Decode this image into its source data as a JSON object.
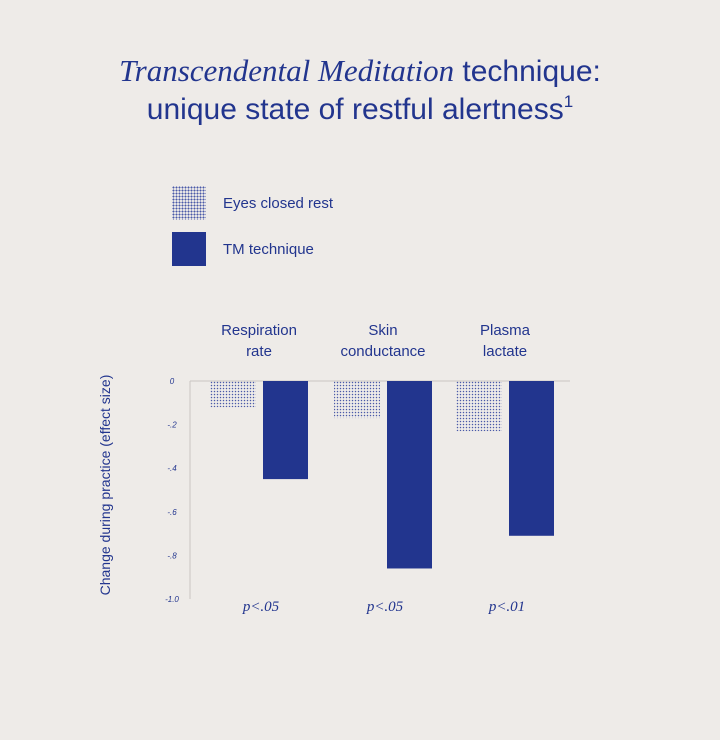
{
  "title": {
    "italic_part": "Transcendental Meditation",
    "rest_line1": " technique:",
    "line2": "unique state of restful alertness",
    "superscript": "1"
  },
  "legend": [
    {
      "label": "Eyes closed rest",
      "style": "dotted"
    },
    {
      "label": "TM technique",
      "style": "solid"
    }
  ],
  "chart_data": {
    "type": "bar",
    "categories": [
      {
        "lines": [
          "Respiration",
          "rate"
        ],
        "pvalue": "p<.05"
      },
      {
        "lines": [
          "Skin",
          "conductance"
        ],
        "pvalue": "p<.05"
      },
      {
        "lines": [
          "Plasma",
          "lactate"
        ],
        "pvalue": "p<.01"
      }
    ],
    "series": [
      {
        "name": "Eyes closed rest",
        "values": [
          -0.12,
          -0.17,
          -0.23
        ]
      },
      {
        "name": "TM technique",
        "values": [
          -0.45,
          -0.86,
          -0.71
        ]
      }
    ],
    "ylabel": "Change during practice (effect size)",
    "ylim": [
      -1.0,
      0
    ],
    "yticks": [
      0,
      -0.2,
      -0.4,
      -0.6,
      -0.8,
      -1.0
    ],
    "ytick_labels": [
      "0",
      "-.2",
      "-.4",
      "-.6",
      "-.8",
      "-1.0"
    ],
    "colors": {
      "solid": "#22358e",
      "dots": "#4a5aa8"
    }
  }
}
